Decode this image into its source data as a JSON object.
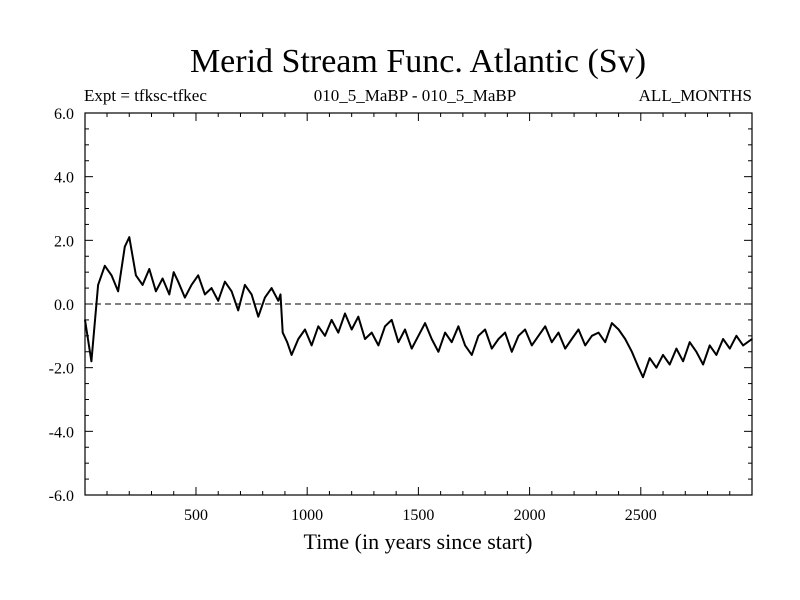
{
  "chart_data": {
    "type": "line",
    "title": "Merid Stream Func. Atlantic (Sv)",
    "subtitle_left": "Expt = tfksc-tfkec",
    "subtitle_center": "010_5_MaBP - 010_5_MaBP",
    "subtitle_right": "ALL_MONTHS",
    "xlabel": "Time (in years since start)",
    "ylabel": "",
    "xlim": [
      1,
      3000
    ],
    "ylim": [
      -6.0,
      6.0
    ],
    "x_ticks": [
      500,
      1000,
      1500,
      2000,
      2500
    ],
    "x_tick_labels": [
      "500",
      "1000",
      "1500",
      "2000",
      "2500"
    ],
    "y_ticks": [
      6.0,
      4.0,
      2.0,
      0.0,
      -2.0,
      -4.0,
      -6.0
    ],
    "y_tick_labels": [
      "6.0",
      "4.0",
      "2.0",
      "0.0",
      "-2.0",
      "-4.0",
      "-6.0"
    ],
    "zero_reference_line": 0.0,
    "series": [
      {
        "name": "Merid Stream Func. Atlantic",
        "color": "#000000",
        "x": [
          1,
          30,
          60,
          90,
          120,
          150,
          180,
          200,
          230,
          260,
          290,
          320,
          350,
          380,
          400,
          420,
          450,
          480,
          510,
          540,
          570,
          600,
          630,
          660,
          690,
          720,
          750,
          780,
          810,
          840,
          870,
          880,
          890,
          910,
          930,
          960,
          990,
          1020,
          1050,
          1080,
          1110,
          1140,
          1170,
          1200,
          1230,
          1260,
          1290,
          1320,
          1350,
          1380,
          1410,
          1440,
          1470,
          1500,
          1530,
          1560,
          1590,
          1620,
          1650,
          1680,
          1710,
          1740,
          1770,
          1800,
          1830,
          1860,
          1890,
          1920,
          1950,
          1980,
          2010,
          2040,
          2070,
          2100,
          2130,
          2160,
          2190,
          2220,
          2250,
          2280,
          2310,
          2340,
          2370,
          2400,
          2430,
          2460,
          2490,
          2510,
          2540,
          2570,
          2600,
          2630,
          2660,
          2690,
          2720,
          2750,
          2780,
          2810,
          2840,
          2870,
          2900,
          2930,
          2960,
          3000
        ],
        "values": [
          -0.5,
          -1.8,
          0.6,
          1.2,
          0.9,
          0.4,
          1.8,
          2.1,
          0.9,
          0.6,
          1.1,
          0.4,
          0.8,
          0.3,
          1.0,
          0.7,
          0.2,
          0.6,
          0.9,
          0.3,
          0.5,
          0.1,
          0.7,
          0.4,
          -0.2,
          0.6,
          0.3,
          -0.4,
          0.2,
          0.5,
          0.1,
          0.3,
          -0.9,
          -1.2,
          -1.6,
          -1.1,
          -0.8,
          -1.3,
          -0.7,
          -1.0,
          -0.5,
          -0.9,
          -0.3,
          -0.8,
          -0.4,
          -1.1,
          -0.9,
          -1.3,
          -0.7,
          -0.5,
          -1.2,
          -0.8,
          -1.4,
          -1.0,
          -0.6,
          -1.1,
          -1.5,
          -0.9,
          -1.2,
          -0.7,
          -1.3,
          -1.6,
          -1.0,
          -0.8,
          -1.4,
          -1.1,
          -0.9,
          -1.5,
          -1.0,
          -0.8,
          -1.3,
          -1.0,
          -0.7,
          -1.2,
          -0.9,
          -1.4,
          -1.1,
          -0.8,
          -1.3,
          -1.0,
          -0.9,
          -1.2,
          -0.6,
          -0.8,
          -1.1,
          -1.5,
          -2.0,
          -2.3,
          -1.7,
          -2.0,
          -1.6,
          -1.9,
          -1.4,
          -1.8,
          -1.2,
          -1.5,
          -1.9,
          -1.3,
          -1.6,
          -1.1,
          -1.4,
          -1.0,
          -1.3,
          -1.1
        ]
      }
    ]
  }
}
